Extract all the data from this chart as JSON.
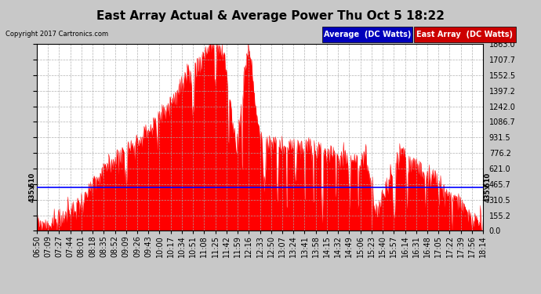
{
  "title": "East Array Actual & Average Power Thu Oct 5 18:22",
  "copyright": "Copyright 2017 Cartronics.com",
  "legend_avg": "Average  (DC Watts)",
  "legend_east": "East Array  (DC Watts)",
  "average_line": 435.51,
  "ymin": 0.0,
  "ymax": 1863.0,
  "ytick_values": [
    0.0,
    155.2,
    310.5,
    465.7,
    621.0,
    776.2,
    931.5,
    1086.7,
    1242.0,
    1397.2,
    1552.5,
    1707.7,
    1863.0
  ],
  "ytick_labels": [
    "0.0",
    "155.2",
    "310.5",
    "465.7",
    "621.0",
    "776.2",
    "931.5",
    "1086.7",
    "1242.0",
    "1397.2",
    "1552.5",
    "1707.7",
    "1863.0"
  ],
  "bg_color": "#c8c8c8",
  "plot_bg_color": "#ffffff",
  "fill_color": "#ff0000",
  "avg_line_color": "#0000ff",
  "grid_color": "#aaaaaa",
  "title_fontsize": 11,
  "tick_fontsize": 7,
  "copyright_fontsize": 6,
  "legend_fontsize": 7,
  "xtick_labels": [
    "06:50",
    "07:09",
    "07:27",
    "07:44",
    "08:01",
    "08:18",
    "08:35",
    "08:52",
    "09:09",
    "09:26",
    "09:43",
    "10:00",
    "10:17",
    "10:34",
    "10:51",
    "11:08",
    "11:25",
    "11:42",
    "11:59",
    "12:16",
    "12:33",
    "12:50",
    "13:07",
    "13:24",
    "13:41",
    "13:58",
    "14:15",
    "14:32",
    "14:49",
    "15:06",
    "15:23",
    "15:40",
    "15:57",
    "16:14",
    "16:31",
    "16:48",
    "17:05",
    "17:22",
    "17:39",
    "17:56",
    "18:14"
  ],
  "n_points": 820,
  "seed": 99
}
